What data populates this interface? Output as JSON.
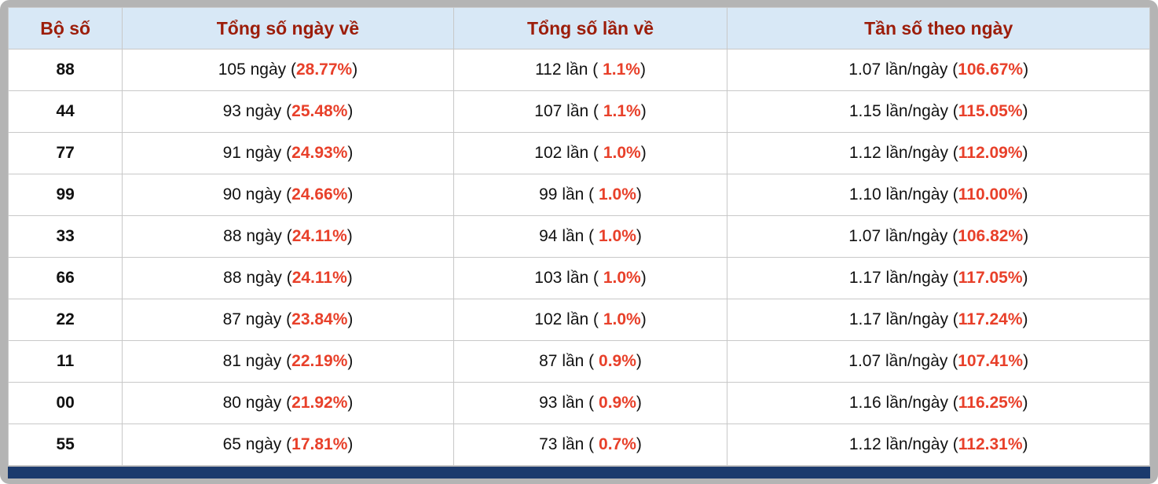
{
  "table": {
    "headers": [
      "Bộ số",
      "Tổng số ngày về",
      "Tổng số lần về",
      "Tần số theo ngày"
    ],
    "rows": [
      {
        "pair": "88",
        "days": "105 ngày",
        "days_pct": "28.77%",
        "times": "112 lần",
        "times_pct": "1.1%",
        "freq": "1.07 lần/ngày",
        "freq_pct": "106.67%"
      },
      {
        "pair": "44",
        "days": "93 ngày",
        "days_pct": "25.48%",
        "times": "107 lần",
        "times_pct": "1.1%",
        "freq": "1.15 lần/ngày",
        "freq_pct": "115.05%"
      },
      {
        "pair": "77",
        "days": "91 ngày",
        "days_pct": "24.93%",
        "times": "102 lần",
        "times_pct": "1.0%",
        "freq": "1.12 lần/ngày",
        "freq_pct": "112.09%"
      },
      {
        "pair": "99",
        "days": "90 ngày",
        "days_pct": "24.66%",
        "times": "99 lần",
        "times_pct": "1.0%",
        "freq": "1.10 lần/ngày",
        "freq_pct": "110.00%"
      },
      {
        "pair": "33",
        "days": "88 ngày",
        "days_pct": "24.11%",
        "times": "94 lần",
        "times_pct": "1.0%",
        "freq": "1.07 lần/ngày",
        "freq_pct": "106.82%"
      },
      {
        "pair": "66",
        "days": "88 ngày",
        "days_pct": "24.11%",
        "times": "103 lần",
        "times_pct": "1.0%",
        "freq": "1.17 lần/ngày",
        "freq_pct": "117.05%"
      },
      {
        "pair": "22",
        "days": "87 ngày",
        "days_pct": "23.84%",
        "times": "102 lần",
        "times_pct": "1.0%",
        "freq": "1.17 lần/ngày",
        "freq_pct": "117.24%"
      },
      {
        "pair": "11",
        "days": "81 ngày",
        "days_pct": "22.19%",
        "times": "87 lần",
        "times_pct": "0.9%",
        "freq": "1.07 lần/ngày",
        "freq_pct": "107.41%"
      },
      {
        "pair": "00",
        "days": "80 ngày",
        "days_pct": "21.92%",
        "times": "93 lần",
        "times_pct": "0.9%",
        "freq": "1.16 lần/ngày",
        "freq_pct": "116.25%"
      },
      {
        "pair": "55",
        "days": "65 ngày",
        "days_pct": "17.81%",
        "times": "73 lần",
        "times_pct": "0.7%",
        "freq": "1.12 lần/ngày",
        "freq_pct": "112.31%"
      }
    ],
    "colors": {
      "header_bg": "#d8e8f6",
      "header_text": "#9c1d0a",
      "highlight": "#e8402a",
      "footer_bar": "#1b3a6d",
      "frame": "#b4b4b4"
    }
  },
  "chart_data": {
    "type": "table",
    "columns": [
      "Bộ số",
      "Tổng số ngày về",
      "Tổng số lần về",
      "Tần số theo ngày"
    ],
    "rows": [
      {
        "pair": "88",
        "days": 105,
        "days_pct": 28.77,
        "times": 112,
        "times_pct": 1.1,
        "freq_per_day": 1.07,
        "freq_pct": 106.67
      },
      {
        "pair": "44",
        "days": 93,
        "days_pct": 25.48,
        "times": 107,
        "times_pct": 1.1,
        "freq_per_day": 1.15,
        "freq_pct": 115.05
      },
      {
        "pair": "77",
        "days": 91,
        "days_pct": 24.93,
        "times": 102,
        "times_pct": 1.0,
        "freq_per_day": 1.12,
        "freq_pct": 112.09
      },
      {
        "pair": "99",
        "days": 90,
        "days_pct": 24.66,
        "times": 99,
        "times_pct": 1.0,
        "freq_per_day": 1.1,
        "freq_pct": 110.0
      },
      {
        "pair": "33",
        "days": 88,
        "days_pct": 24.11,
        "times": 94,
        "times_pct": 1.0,
        "freq_per_day": 1.07,
        "freq_pct": 106.82
      },
      {
        "pair": "66",
        "days": 88,
        "days_pct": 24.11,
        "times": 103,
        "times_pct": 1.0,
        "freq_per_day": 1.17,
        "freq_pct": 117.05
      },
      {
        "pair": "22",
        "days": 87,
        "days_pct": 23.84,
        "times": 102,
        "times_pct": 1.0,
        "freq_per_day": 1.17,
        "freq_pct": 117.24
      },
      {
        "pair": "11",
        "days": 81,
        "days_pct": 22.19,
        "times": 87,
        "times_pct": 0.9,
        "freq_per_day": 1.07,
        "freq_pct": 107.41
      },
      {
        "pair": "00",
        "days": 80,
        "days_pct": 21.92,
        "times": 93,
        "times_pct": 0.9,
        "freq_per_day": 1.16,
        "freq_pct": 116.25
      },
      {
        "pair": "55",
        "days": 65,
        "days_pct": 17.81,
        "times": 73,
        "times_pct": 0.7,
        "freq_per_day": 1.12,
        "freq_pct": 112.31
      }
    ]
  }
}
